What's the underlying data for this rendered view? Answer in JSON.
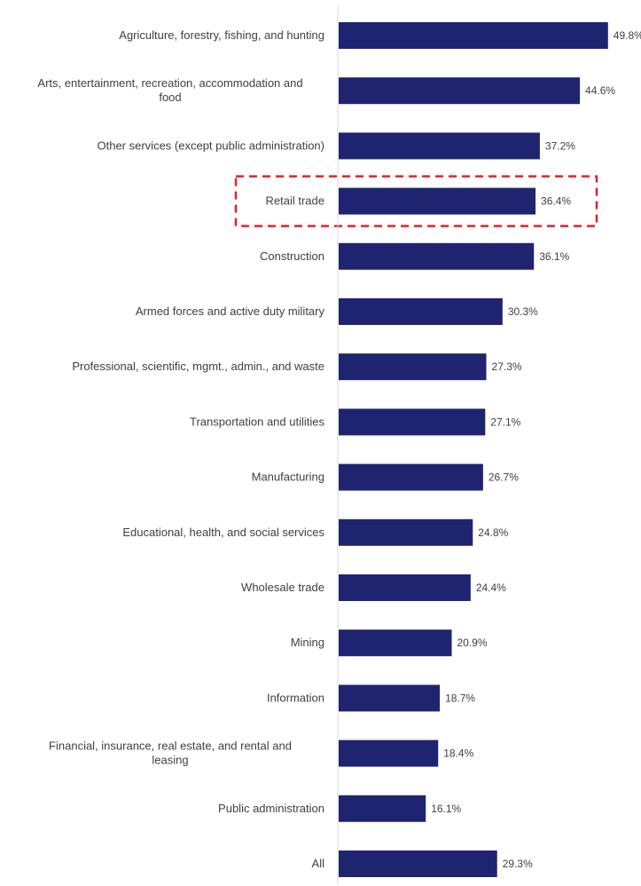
{
  "chart_data": {
    "type": "bar",
    "orientation": "horizontal",
    "categories": [
      "Agriculture, forestry, fishing, and hunting",
      "Arts, entertainment, recreation, accommodation and food",
      "Other services (except public administration)",
      "Retail trade",
      "Construction",
      "Armed forces and active duty military",
      "Professional, scientific, mgmt., admin., and waste",
      "Transportation and utilities",
      "Manufacturing",
      "Educational, health, and social services",
      "Wholesale trade",
      "Mining",
      "Information",
      "Financial, insurance, real estate, and rental and leasing",
      "Public administration",
      "All"
    ],
    "values": [
      49.8,
      44.6,
      37.2,
      36.4,
      36.1,
      30.3,
      27.3,
      27.1,
      26.7,
      24.8,
      24.4,
      20.9,
      18.7,
      18.4,
      16.1,
      29.3
    ],
    "value_labels": [
      "49.8%",
      "44.6%",
      "37.2%",
      "36.4%",
      "36.1%",
      "30.3%",
      "27.3%",
      "27.1%",
      "26.7%",
      "24.8%",
      "24.4%",
      "20.9%",
      "18.7%",
      "18.4%",
      "16.1%",
      "29.3%"
    ],
    "unit": "%",
    "title": "",
    "xlabel": "",
    "ylabel": "",
    "xlim": [
      0,
      50
    ],
    "grid": false,
    "legend": "none",
    "highlight": {
      "category": "Retail trade",
      "style": "dashed-box",
      "color": "#e8202a"
    },
    "colors": {
      "bar": "#1f2470",
      "axis": "#d9d9d9",
      "text": "#404040"
    }
  }
}
